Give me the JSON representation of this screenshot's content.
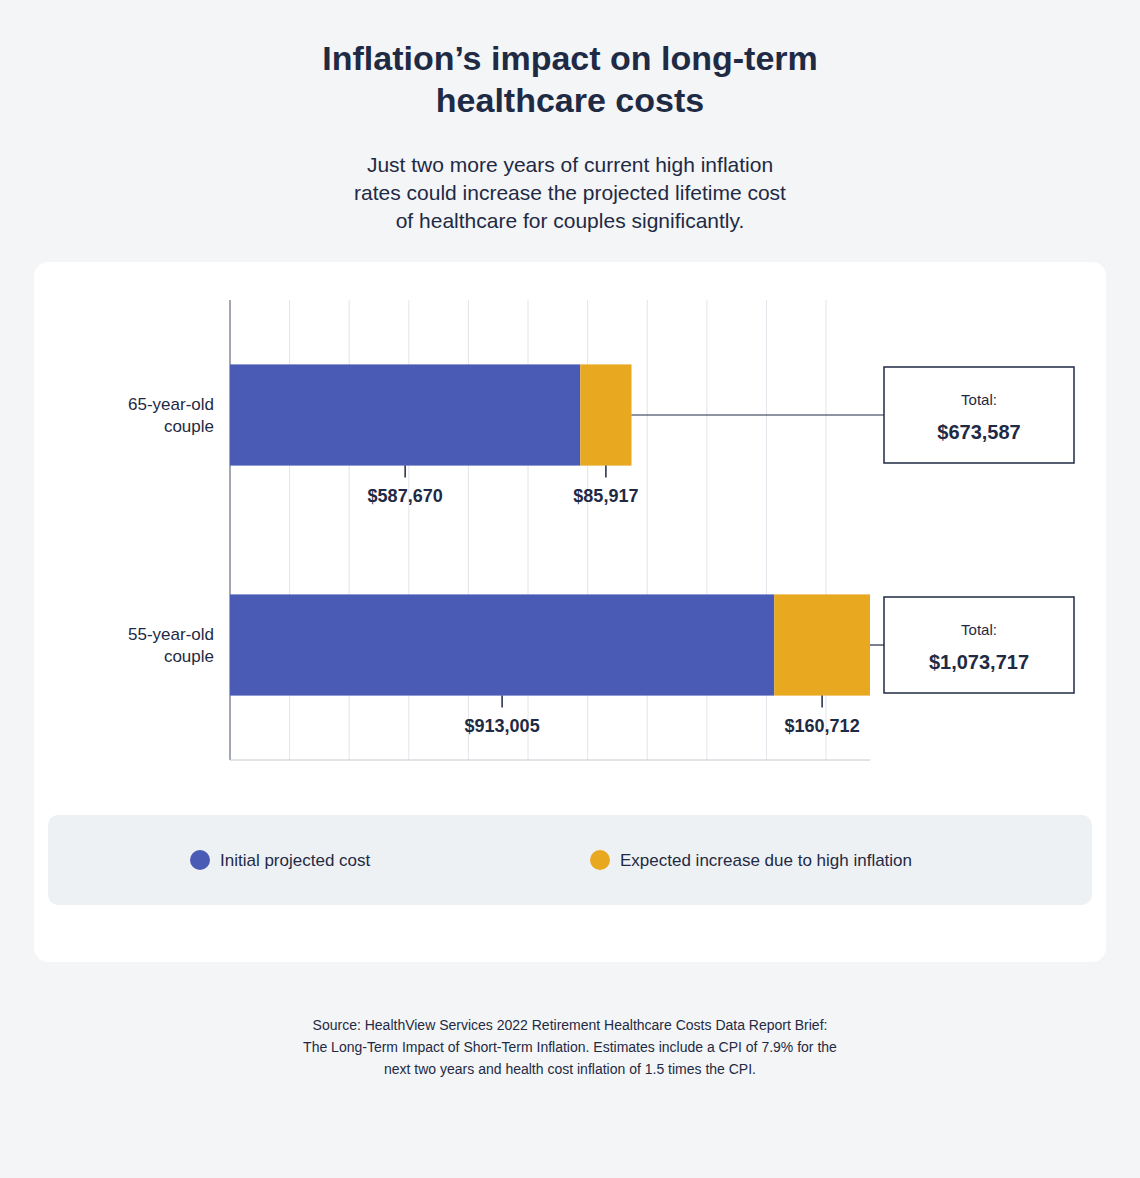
{
  "chart_data": {
    "type": "bar",
    "orientation": "horizontal",
    "stacked": true,
    "title": "Inflation’s impact on long-term\nhealthcare costs",
    "subtitle": "Just two more years of current high inflation\nrates could increase the projected lifetime cost\nof healthcare for couples significantly.",
    "categories": [
      "65-year-old\ncouple",
      "55-year-old\ncouple"
    ],
    "series": [
      {
        "name": "Initial projected cost",
        "color": "#4A5BB5",
        "values": [
          587670,
          913005
        ],
        "value_labels": [
          "$587,670",
          "$913,005"
        ]
      },
      {
        "name": "Expected increase due to high inflation",
        "color": "#E8A820",
        "values": [
          85917,
          160712
        ],
        "value_labels": [
          "$85,917",
          "$160,712"
        ]
      }
    ],
    "data_labels": true,
    "totals": {
      "caption": "Total:",
      "values": [
        673587,
        1073717
      ],
      "labels": [
        "$673,587",
        "$1,073,717"
      ]
    },
    "xlim": [
      0,
      1073717
    ],
    "xticks": [
      0,
      100000,
      200000,
      300000,
      400000,
      500000,
      600000,
      700000,
      800000,
      900000,
      1000000
    ],
    "grid": true,
    "tick_labels": false,
    "legend": "bottom",
    "source": "Source: HealthView Services 2022 Retirement Healthcare Costs Data Report Brief:\nThe Long-Term Impact of Short-Term Inflation. Estimates include a CPI of 7.9% for the\nnext two years and health cost inflation of 1.5 times the CPI."
  }
}
